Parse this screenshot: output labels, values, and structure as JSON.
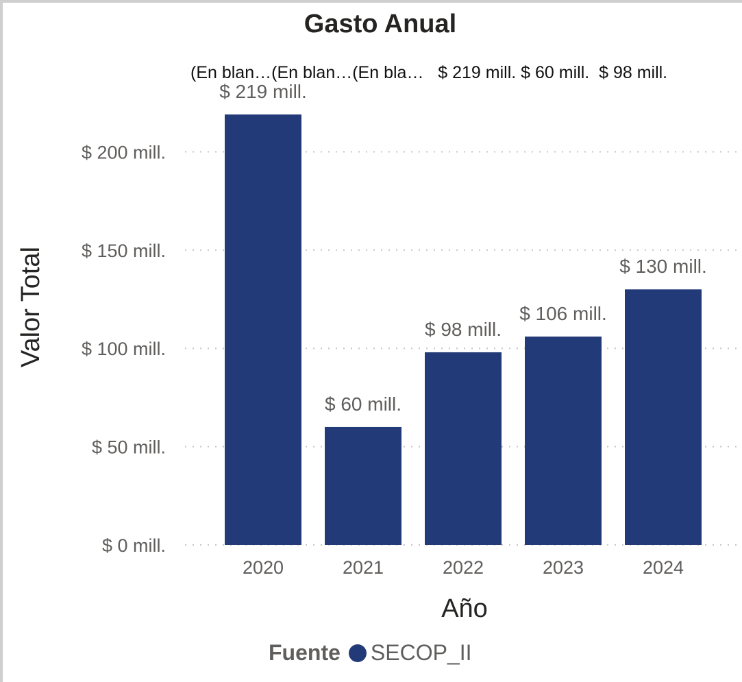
{
  "chart_data": {
    "type": "bar",
    "title": "Gasto Anual",
    "xlabel": "Año",
    "ylabel": "Valor Total",
    "categories": [
      "2020",
      "2021",
      "2022",
      "2023",
      "2024"
    ],
    "series": [
      {
        "name": "SECOP_II",
        "values": [
          219,
          60,
          98,
          106,
          130
        ],
        "labels": [
          "$ 219 mill.",
          "$ 60 mill.",
          "$ 98 mill.",
          "$ 106 mill.",
          "$ 130 mill."
        ]
      }
    ],
    "ylim": [
      0,
      219
    ],
    "yticks": [
      0,
      50,
      100,
      150,
      200
    ],
    "ytick_labels": [
      "$ 0 mill.",
      "$ 50 mill.",
      "$ 100 mill.",
      "$ 150 mill.",
      "$ 200 mill."
    ],
    "grid": "dotted-horizontal",
    "legend": {
      "title": "Fuente",
      "placement": "bottom",
      "entries": [
        "SECOP_II"
      ]
    },
    "overflow_labels": "(En blan…(En blan…(En bla…   $ 219 mill. $ 60 mill.  $ 98 mill."
  },
  "colors": {
    "bar": "#233a78",
    "grid": "#c8c6c4"
  }
}
